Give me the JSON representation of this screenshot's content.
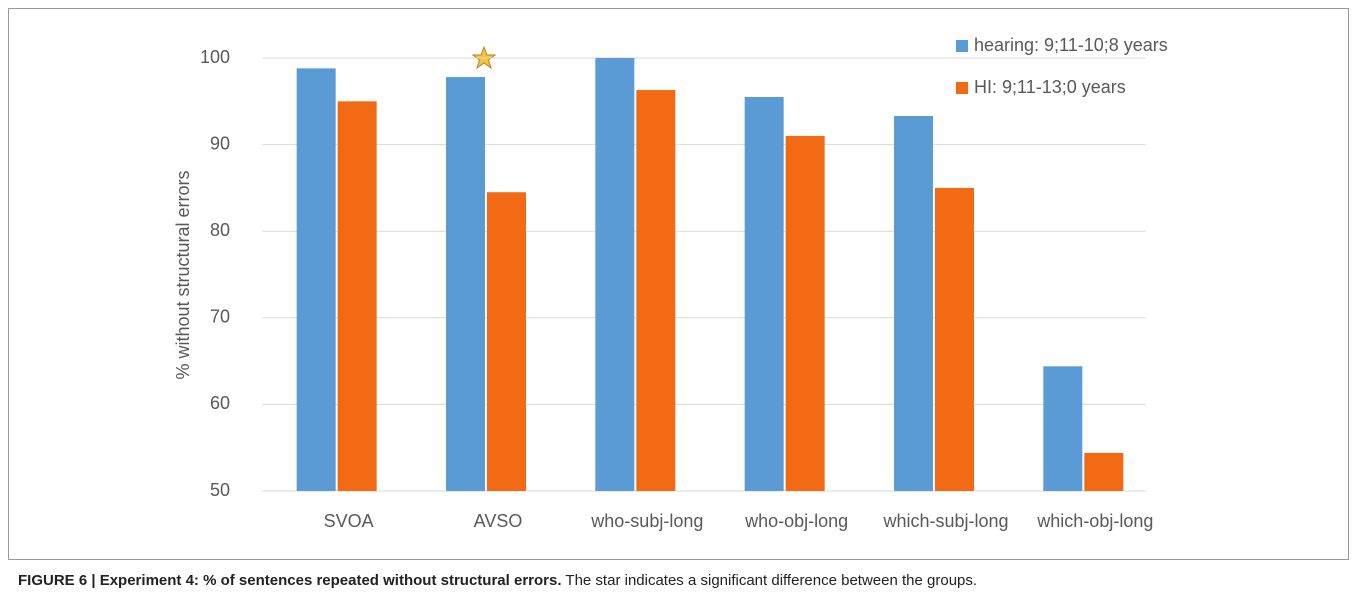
{
  "chart_data": {
    "type": "bar",
    "y_label": "% without structural errors",
    "categories": [
      "SVOA",
      "AVSO",
      "who-subj-long",
      "who-obj-long",
      "which-subj-long",
      "which-obj-long"
    ],
    "series": [
      {
        "name": "hearing: 9;11-10;8 years",
        "color": "#5b9bd5",
        "values": [
          98.8,
          97.8,
          100,
          95.5,
          93.3,
          64.4
        ]
      },
      {
        "name": "HI: 9;11-13;0 years",
        "color": "#f26b14",
        "values": [
          95,
          84.5,
          96.3,
          91,
          85,
          54.4
        ]
      }
    ],
    "ylim": [
      50,
      100
    ],
    "yticks": [
      50,
      60,
      70,
      80,
      90,
      100
    ],
    "grid": true,
    "legend": "top-right"
  },
  "caption": {
    "label": "FIGURE 6 | Experiment 4: % of sentences repeated without structural errors.",
    "text": "The star indicates a significant difference between the groups."
  }
}
